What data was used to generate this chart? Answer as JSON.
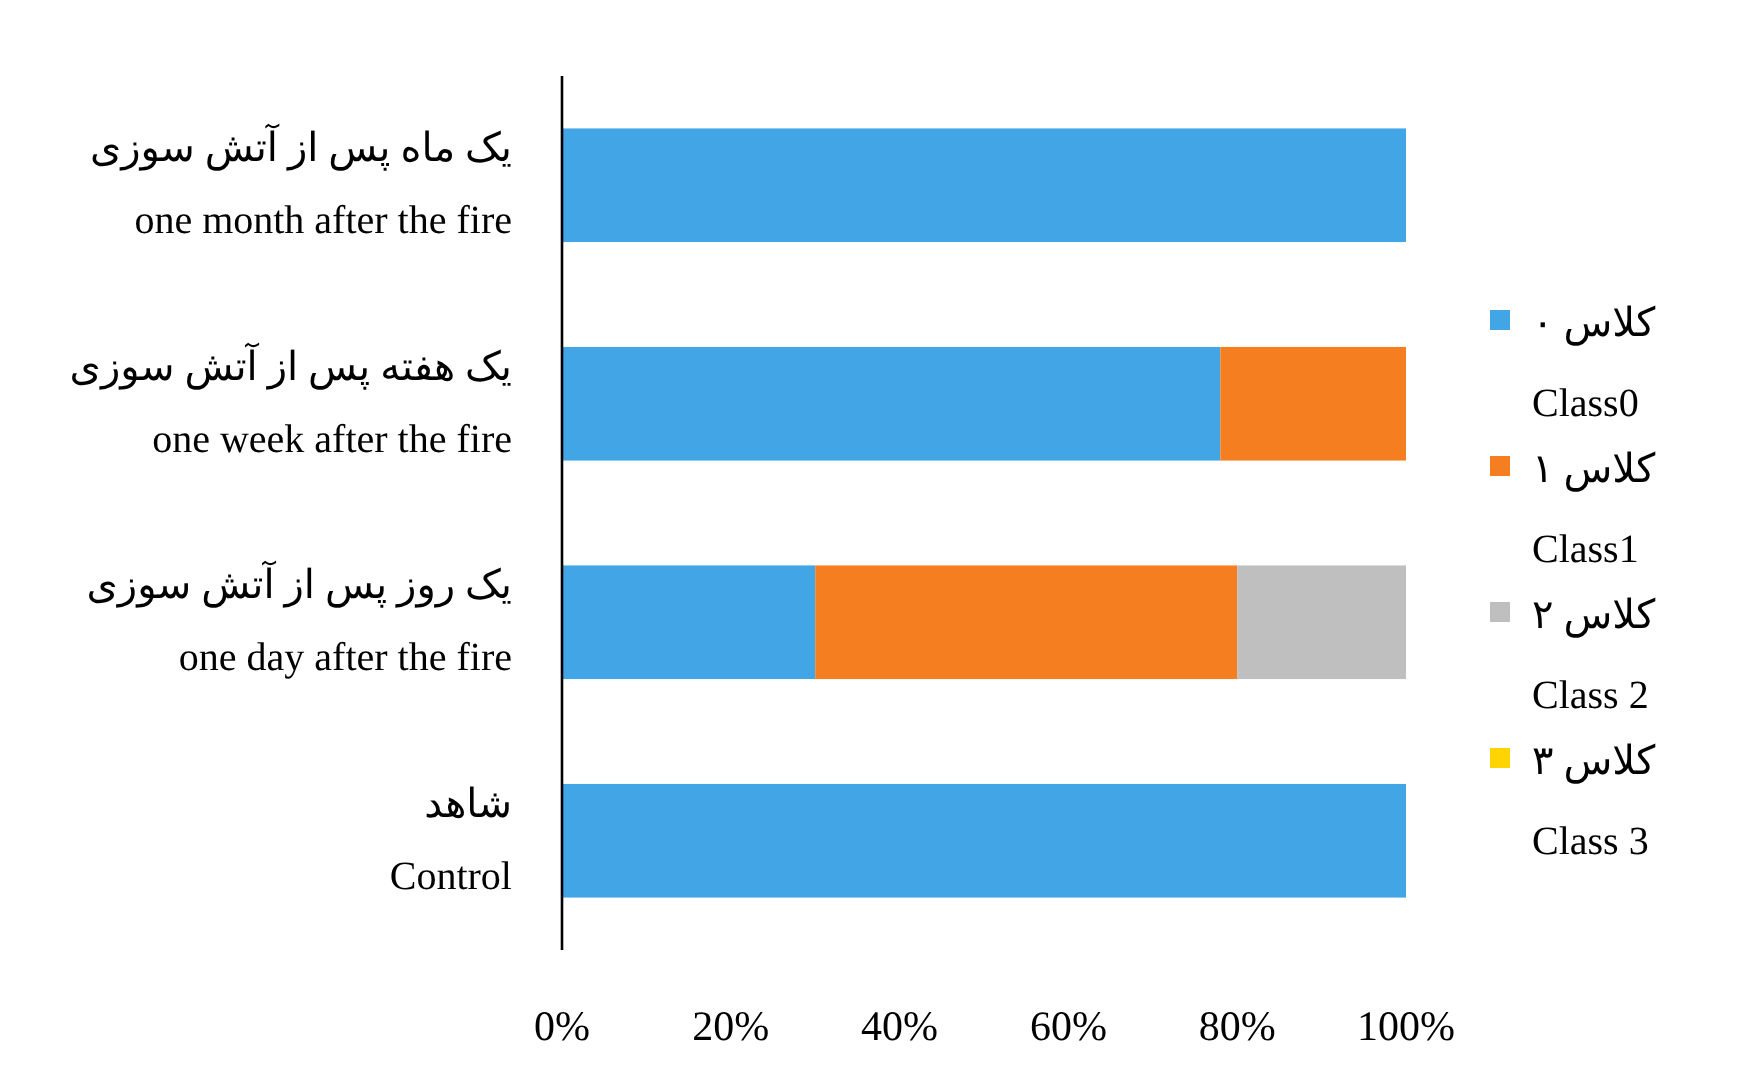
{
  "chart_data": {
    "type": "bar",
    "orientation": "horizontal",
    "stacked": true,
    "categories": [
      "یک ماه پس از آتش سوزی\none month after the fire",
      "یک هفته پس از آتش سوزی\none week after the fire",
      "یک روز پس از آتش سوزی\none day after the fire",
      "شاهد\nControl"
    ],
    "series": [
      {
        "name": "کلاس ۰\nClass0",
        "color": "#41a5e6",
        "values": [
          100,
          78,
          30,
          100
        ]
      },
      {
        "name": "کلاس ۱\nClass1",
        "color": "#f57f20",
        "values": [
          0,
          22,
          50,
          0
        ]
      },
      {
        "name": "کلاس ۲\nClass 2",
        "color": "#bfbfbf",
        "values": [
          0,
          0,
          20,
          0
        ]
      },
      {
        "name": "کلاس ۳\nClass 3",
        "color": "#ffd400",
        "values": [
          0,
          0,
          0,
          0
        ]
      }
    ],
    "xlim": [
      0,
      100
    ],
    "xticks": [
      {
        "value": 0,
        "label": "0%"
      },
      {
        "value": 20,
        "label": "20%"
      },
      {
        "value": 40,
        "label": "40%"
      },
      {
        "value": 60,
        "label": "60%"
      },
      {
        "value": 80,
        "label": "80%"
      },
      {
        "value": 100,
        "label": "100%"
      }
    ],
    "legend": "right",
    "grid": false
  }
}
